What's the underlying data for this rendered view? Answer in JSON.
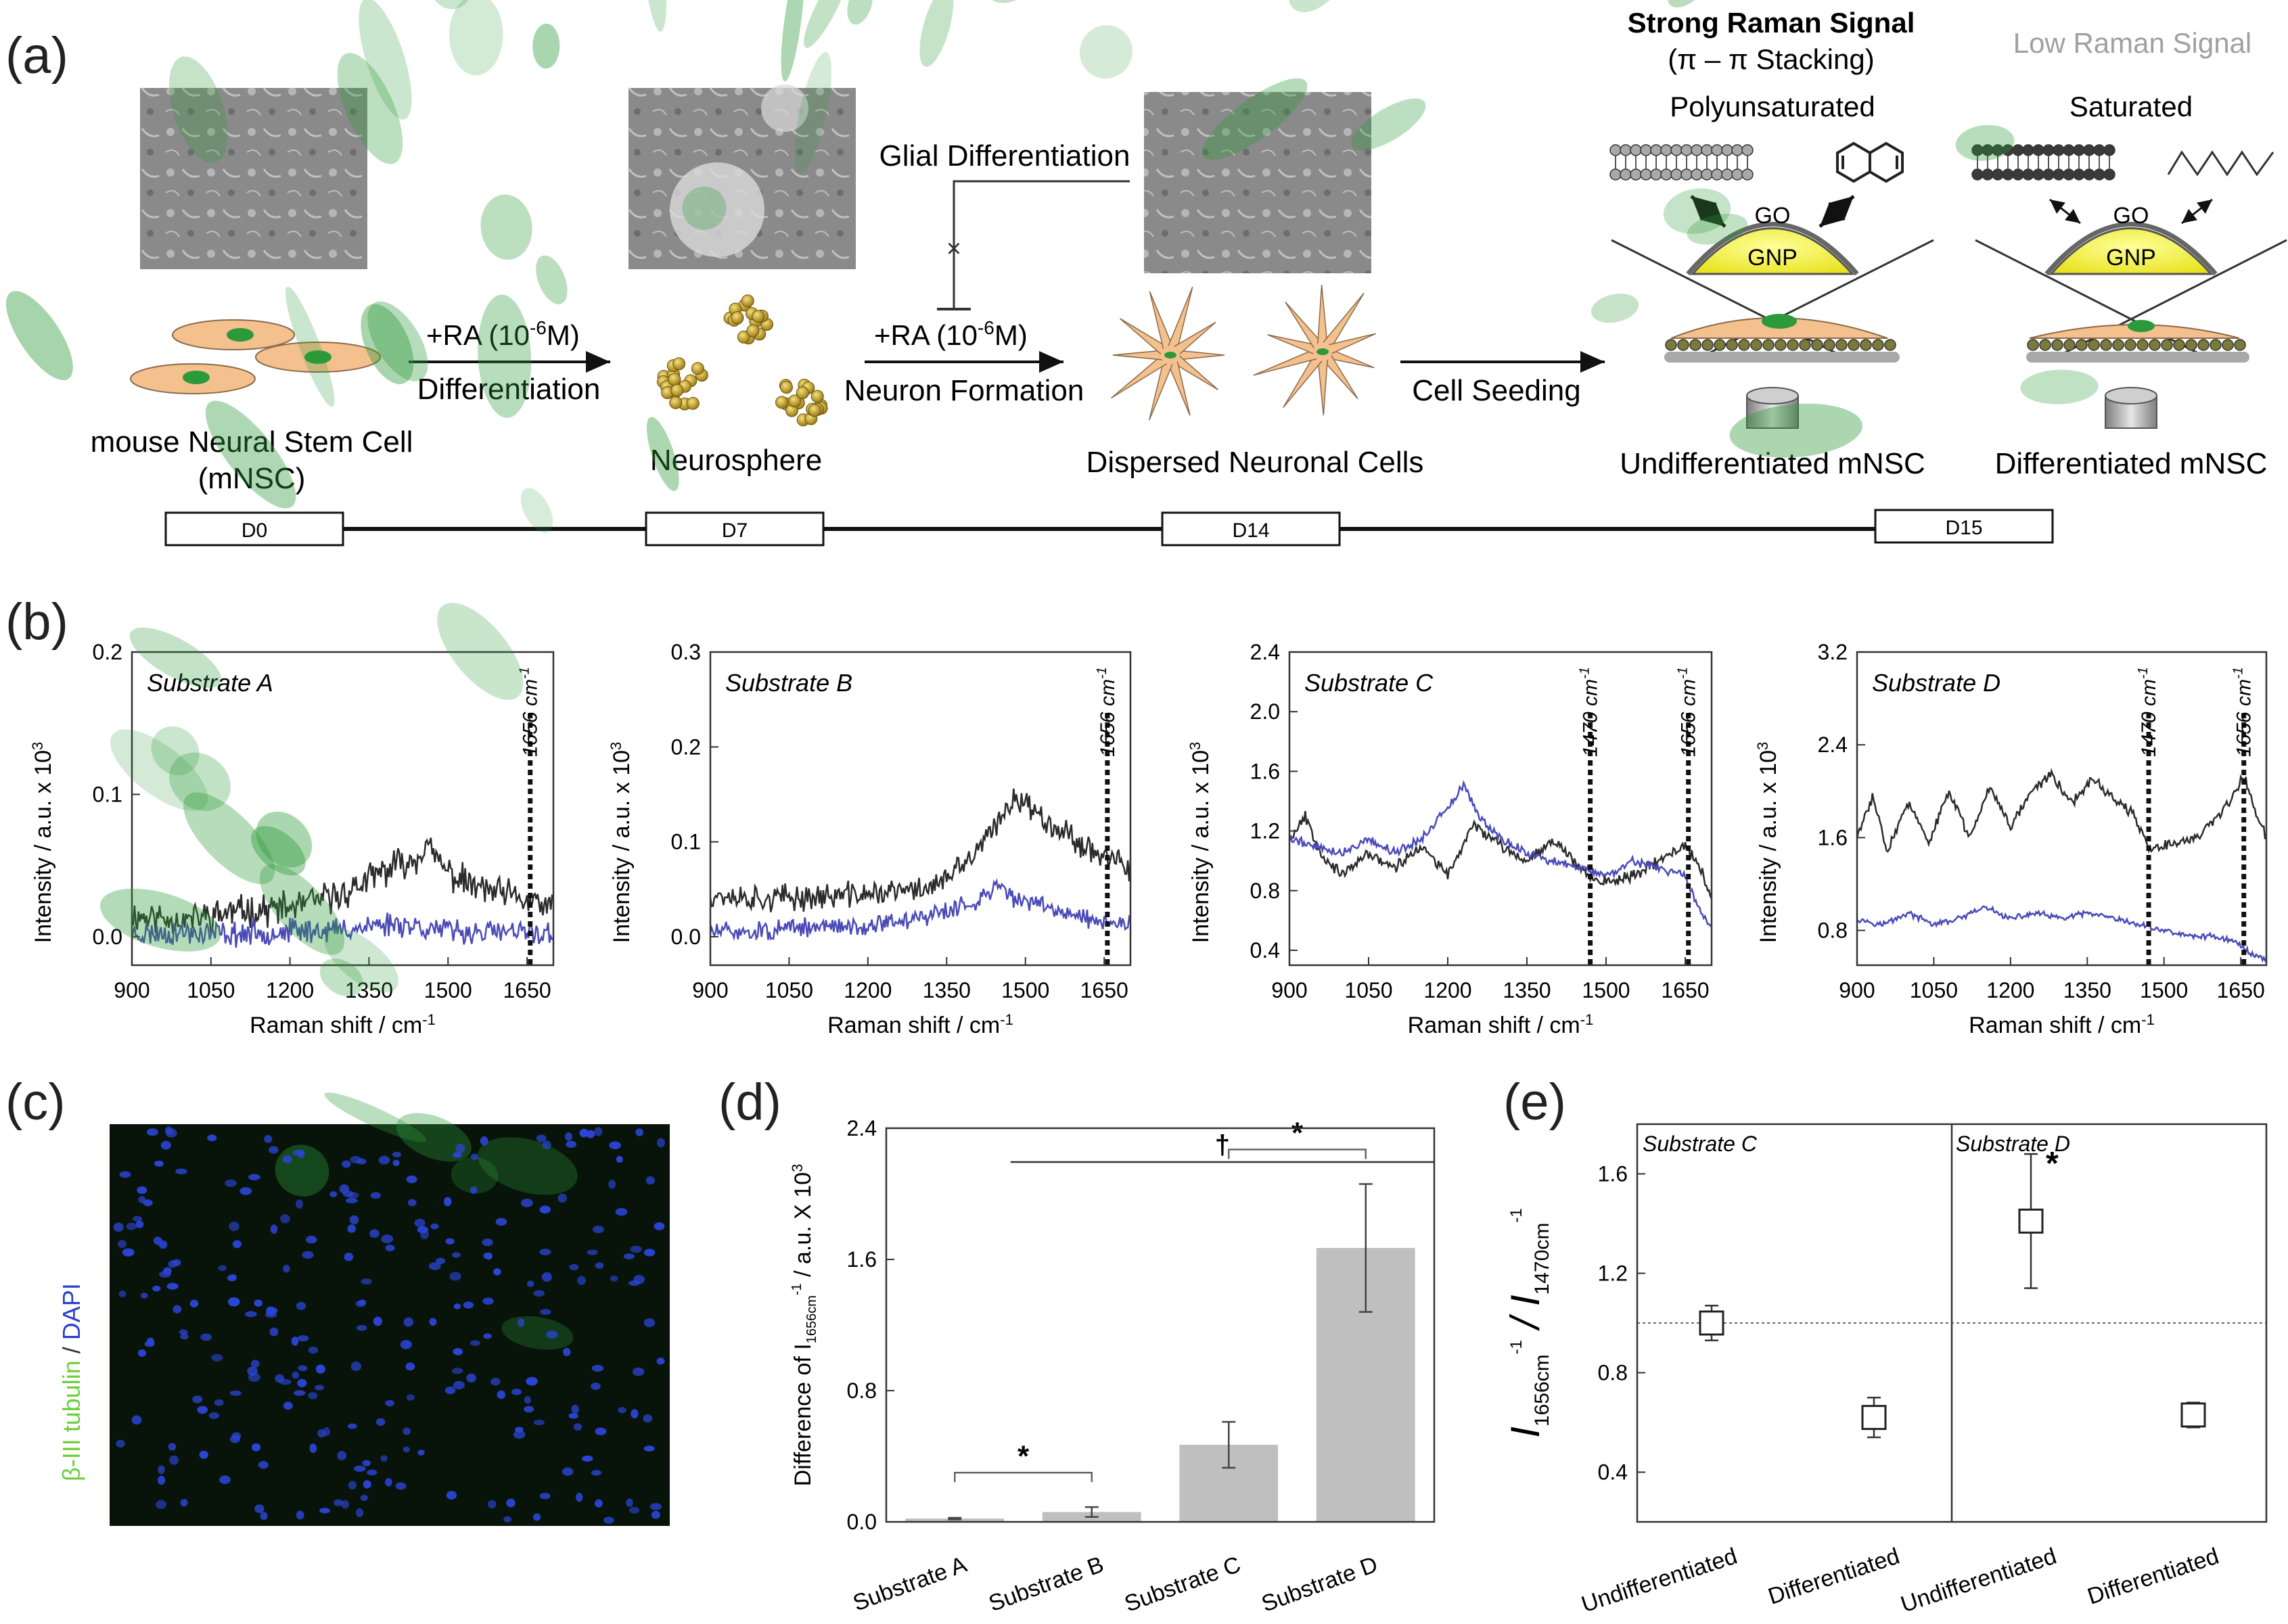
{
  "panel_labels": {
    "a": "(a)",
    "b": "(b)",
    "c": "(c)",
    "d": "(d)",
    "e": "(e)"
  },
  "panel_a": {
    "stem_cell_label_1": "mouse Neural Stem Cell",
    "stem_cell_label_2": "(mNSC)",
    "neurosphere_label": "Neurosphere",
    "dispersed_label": "Dispersed Neuronal Cells",
    "arrow1_top": "+RA (10",
    "arrow1_exp": "-6",
    "arrow1_tail": "M)",
    "arrow1_bottom": "Differentiation",
    "arrow2_top": "+RA (10",
    "arrow2_exp": "-6",
    "arrow2_tail": "M)",
    "arrow2_bottom": "Neuron Formation",
    "glial_label": "Glial Differentiation",
    "seeding_label": "Cell Seeding",
    "strong_signal": "Strong Raman Signal",
    "stacking": "(π – π Stacking)",
    "low_signal": "Low Raman Signal",
    "polyunsaturated": "Polyunsaturated",
    "saturated": "Saturated",
    "go": "GO",
    "gnp": "GNP",
    "undiff_label": "Undifferentiated mNSC",
    "diff_label": "Differentiated mNSC",
    "timeline": [
      "D0",
      "D7",
      "D14",
      "D15"
    ]
  },
  "panel_c": {
    "marker_green": "β-III tubulin",
    "sep": " / ",
    "marker_blue": "DAPI"
  },
  "chart_data": [
    {
      "type": "line",
      "panel": "b",
      "title": "Substrate A",
      "xlabel": "Raman shift / cm",
      "xlabel_sup": "-1",
      "ylabel": "Intensity / a.u. x 10",
      "ylabel_sup": "3",
      "xlim": [
        900,
        1700
      ],
      "ylim": [
        -0.02,
        0.2
      ],
      "xticks": [
        900,
        1050,
        1200,
        1350,
        1500,
        1650
      ],
      "yticks": [
        0.0,
        0.1,
        0.2
      ],
      "ytick_labels": [
        "0.0",
        "0.1",
        "0.2"
      ],
      "markers": [
        {
          "x": 1656,
          "label": "1656 cm",
          "sup": "-1"
        }
      ],
      "series": [
        {
          "color": "#2b2b2b",
          "noise": 0.009,
          "seed": 11,
          "x": [
            900,
            1000,
            1100,
            1200,
            1300,
            1350,
            1400,
            1440,
            1455,
            1500,
            1550,
            1600,
            1650,
            1700
          ],
          "y": [
            0.015,
            0.012,
            0.018,
            0.02,
            0.03,
            0.04,
            0.05,
            0.055,
            0.065,
            0.045,
            0.035,
            0.03,
            0.025,
            0.02
          ]
        },
        {
          "color": "#4a4ab8",
          "noise": 0.007,
          "seed": 23,
          "x": [
            900,
            1000,
            1100,
            1200,
            1300,
            1400,
            1500,
            1600,
            1700
          ],
          "y": [
            0.002,
            0.003,
            0.002,
            0.004,
            0.005,
            0.01,
            0.004,
            0.003,
            0.002
          ]
        }
      ]
    },
    {
      "type": "line",
      "panel": "b",
      "title": "Substrate B",
      "xlabel": "Raman shift / cm",
      "xlabel_sup": "-1",
      "ylabel": "Intensity / a.u. x 10",
      "ylabel_sup": "3",
      "xlim": [
        900,
        1700
      ],
      "ylim": [
        -0.03,
        0.3
      ],
      "xticks": [
        900,
        1050,
        1200,
        1350,
        1500,
        1650
      ],
      "yticks": [
        0.0,
        0.1,
        0.2,
        0.3
      ],
      "ytick_labels": [
        "0.0",
        "0.1",
        "0.2",
        "0.3"
      ],
      "markers": [
        {
          "x": 1656,
          "label": "1656 cm",
          "sup": "-1"
        }
      ],
      "series": [
        {
          "color": "#2b2b2b",
          "noise": 0.011,
          "seed": 37,
          "x": [
            900,
            1000,
            1100,
            1200,
            1300,
            1350,
            1400,
            1450,
            1480,
            1500,
            1550,
            1600,
            1650,
            1700
          ],
          "y": [
            0.045,
            0.04,
            0.042,
            0.045,
            0.05,
            0.06,
            0.085,
            0.12,
            0.15,
            0.14,
            0.12,
            0.1,
            0.085,
            0.07
          ]
        },
        {
          "color": "#4a4ab8",
          "noise": 0.008,
          "seed": 51,
          "x": [
            900,
            1000,
            1100,
            1200,
            1300,
            1400,
            1450,
            1480,
            1550,
            1650,
            1700
          ],
          "y": [
            0.005,
            0.006,
            0.01,
            0.012,
            0.02,
            0.035,
            0.055,
            0.04,
            0.03,
            0.015,
            0.01
          ]
        }
      ]
    },
    {
      "type": "line",
      "panel": "b",
      "title": "Substrate C",
      "xlabel": "Raman shift / cm",
      "xlabel_sup": "-1",
      "ylabel": "Intensity / a.u. x 10",
      "ylabel_sup": "3",
      "xlim": [
        900,
        1700
      ],
      "ylim": [
        0.3,
        2.4
      ],
      "xticks": [
        900,
        1050,
        1200,
        1350,
        1500,
        1650
      ],
      "yticks": [
        0.4,
        0.8,
        1.2,
        1.6,
        2.0,
        2.4
      ],
      "ytick_labels": [
        "0.4",
        "0.8",
        "1.2",
        "1.6",
        "2.0",
        "2.4"
      ],
      "markers": [
        {
          "x": 1470,
          "label": "1470 cm",
          "sup": "-1"
        },
        {
          "x": 1656,
          "label": "1656 cm",
          "sup": "-1"
        }
      ],
      "series": [
        {
          "color": "#2b2b2b",
          "noise": 0.03,
          "seed": 67,
          "x": [
            900,
            930,
            960,
            1000,
            1050,
            1100,
            1150,
            1200,
            1250,
            1300,
            1350,
            1400,
            1450,
            1500,
            1550,
            1600,
            1650,
            1680,
            1700
          ],
          "y": [
            1.15,
            1.3,
            1.05,
            0.9,
            1.05,
            0.95,
            1.1,
            0.9,
            1.25,
            1.1,
            1.0,
            1.15,
            0.95,
            0.85,
            0.9,
            1.0,
            1.1,
            0.95,
            0.75
          ]
        },
        {
          "color": "#4a4ab8",
          "noise": 0.025,
          "seed": 79,
          "x": [
            900,
            950,
            1000,
            1050,
            1100,
            1150,
            1200,
            1230,
            1260,
            1300,
            1350,
            1400,
            1450,
            1500,
            1550,
            1600,
            1650,
            1680,
            1700
          ],
          "y": [
            1.15,
            1.1,
            1.05,
            1.15,
            1.05,
            1.15,
            1.35,
            1.5,
            1.3,
            1.15,
            1.05,
            1.0,
            0.95,
            0.9,
            1.0,
            0.95,
            0.9,
            0.65,
            0.55
          ]
        }
      ]
    },
    {
      "type": "line",
      "panel": "b",
      "title": "Substrate D",
      "xlabel": "Raman shift / cm",
      "xlabel_sup": "-1",
      "ylabel": "Intensity / a.u. x 10",
      "ylabel_sup": "3",
      "xlim": [
        900,
        1700
      ],
      "ylim": [
        0.5,
        3.2
      ],
      "xticks": [
        900,
        1050,
        1200,
        1350,
        1500,
        1650
      ],
      "yticks": [
        0.8,
        1.6,
        2.4,
        3.2
      ],
      "ytick_labels": [
        "0.8",
        "1.6",
        "2.4",
        "3.2"
      ],
      "markers": [
        {
          "x": 1470,
          "label": "1470 cm",
          "sup": "-1"
        },
        {
          "x": 1656,
          "label": "1656 cm",
          "sup": "-1"
        }
      ],
      "series": [
        {
          "color": "#2b2b2b",
          "noise": 0.035,
          "seed": 83,
          "x": [
            900,
            930,
            960,
            1000,
            1040,
            1080,
            1120,
            1160,
            1200,
            1240,
            1280,
            1320,
            1360,
            1400,
            1440,
            1470,
            1520,
            1560,
            1600,
            1630,
            1656,
            1680,
            1700
          ],
          "y": [
            1.6,
            1.95,
            1.5,
            1.9,
            1.55,
            2.0,
            1.6,
            2.05,
            1.7,
            2.0,
            2.15,
            1.9,
            2.1,
            1.95,
            1.8,
            1.5,
            1.55,
            1.6,
            1.75,
            1.9,
            2.15,
            1.8,
            1.6
          ]
        },
        {
          "color": "#4a4ab8",
          "noise": 0.02,
          "seed": 97,
          "x": [
            900,
            950,
            1000,
            1050,
            1100,
            1150,
            1200,
            1250,
            1300,
            1350,
            1400,
            1450,
            1500,
            1550,
            1600,
            1640,
            1670,
            1700
          ],
          "y": [
            0.9,
            0.85,
            0.95,
            0.85,
            0.9,
            1.0,
            0.9,
            0.95,
            0.9,
            0.95,
            0.9,
            0.85,
            0.8,
            0.75,
            0.75,
            0.7,
            0.6,
            0.55
          ]
        }
      ]
    },
    {
      "type": "bar",
      "panel": "d",
      "ylabel": "Difference of I",
      "ylabel_sub": "1656cm",
      "ylabel_sup": "-1",
      "ylabel_tail": " / a.u. X 10",
      "ylabel_sup2": "3",
      "categories": [
        "Substrate A",
        "Substrate B",
        "Substrate C",
        "Substrate D"
      ],
      "values": [
        0.02,
        0.06,
        0.47,
        1.67
      ],
      "errors": [
        0.005,
        0.03,
        0.14,
        0.39
      ],
      "ylim": [
        0,
        2.4
      ],
      "yticks": [
        0.0,
        0.8,
        1.6,
        2.4
      ],
      "ytick_labels": [
        "0.0",
        "0.8",
        "1.6",
        "2.4"
      ],
      "color": "#bfbfbf",
      "significance": [
        {
          "from": 0,
          "to": 1,
          "label": "*",
          "y": 0.3
        },
        {
          "from": 2,
          "to": 3,
          "label": "*",
          "y": 2.27
        },
        {
          "from": 1,
          "to": 3,
          "label": "†",
          "y": 2.55,
          "style": "line"
        }
      ]
    },
    {
      "type": "scatter",
      "panel": "e",
      "ylabel_I1": "I",
      "ylabel_sub1": "1656cm",
      "ylabel_sup1": "-1",
      "ylabel_sep": " / ",
      "ylabel_I2": "I",
      "ylabel_sub2": "1470cm",
      "ylabel_sup2": "-1",
      "groups": [
        "Substrate C",
        "Substrate D"
      ],
      "categories": [
        "Undifferentiated",
        "Differentiated",
        "Undifferentiated",
        "Differentiated"
      ],
      "values": [
        1.0,
        0.62,
        1.41,
        0.63
      ],
      "errors": [
        0.07,
        0.08,
        0.27,
        0.05
      ],
      "ylim": [
        0.2,
        1.8
      ],
      "yticks": [
        0.4,
        0.8,
        1.2,
        1.6
      ],
      "ytick_labels": [
        "0.4",
        "0.8",
        "1.2",
        "1.6"
      ],
      "reference_y": 1.0,
      "significance": [
        {
          "index": 2,
          "label": "*"
        }
      ]
    }
  ]
}
